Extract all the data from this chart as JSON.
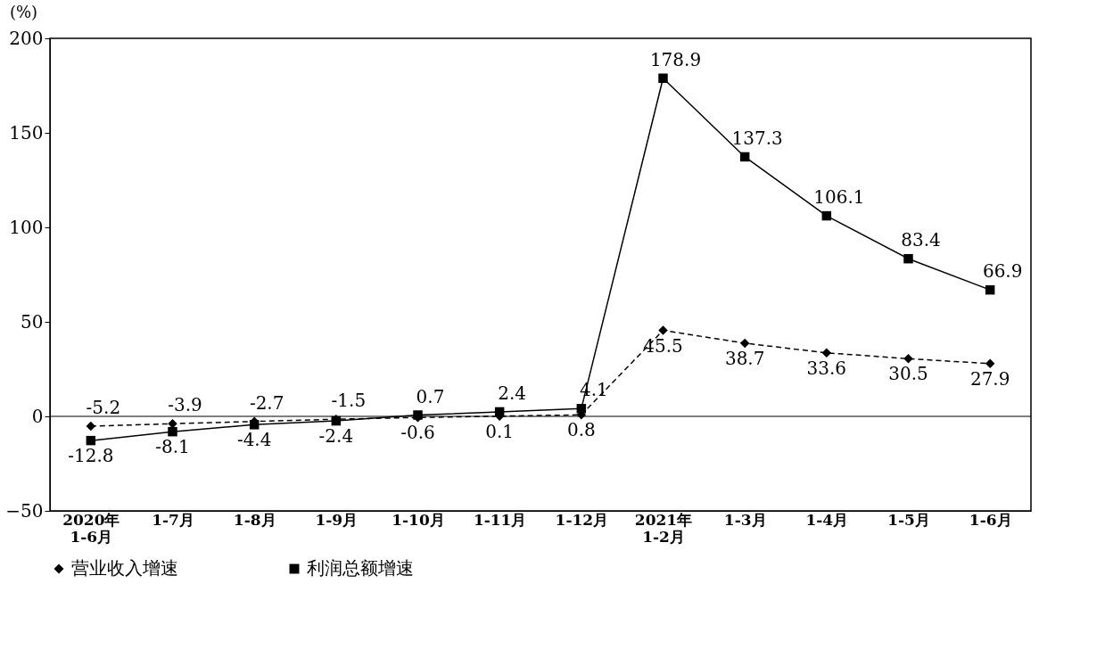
{
  "chart_data": {
    "type": "line",
    "ylabel": "(%)",
    "categories": [
      "2020年\n1-6月",
      "1-7月",
      "1-8月",
      "1-9月",
      "1-10月",
      "1-11月",
      "1-12月",
      "2021年\n1-2月",
      "1-3月",
      "1-4月",
      "1-5月",
      "1-6月"
    ],
    "series": [
      {
        "name": "营业收入增速",
        "color": "#000000",
        "line_style": "dashed",
        "marker": "diamond",
        "values": [
          -5.2,
          -3.9,
          -2.7,
          -1.5,
          -0.6,
          0.1,
          0.8,
          45.5,
          38.7,
          33.6,
          30.5,
          27.9
        ]
      },
      {
        "name": "利润总额增速",
        "color": "#000000",
        "line_style": "solid",
        "marker": "square",
        "values": [
          -12.8,
          -8.1,
          -4.4,
          -2.4,
          0.7,
          2.4,
          4.1,
          178.9,
          137.3,
          106.1,
          83.4,
          66.9
        ]
      }
    ],
    "ylim": [
      -50,
      200
    ],
    "yticks": [
      -50,
      0,
      50,
      100,
      150,
      200
    ],
    "ref_lines": [
      {
        "axis": "y",
        "value": 0
      }
    ],
    "data_labels": true,
    "grid": false,
    "legend": "bottom"
  }
}
